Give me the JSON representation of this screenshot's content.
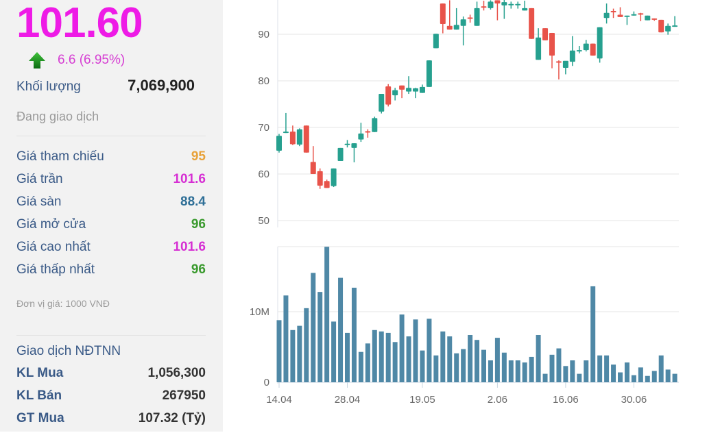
{
  "quote": {
    "price": "101.60",
    "change": "6.6 (6.95%)",
    "volume_label": "Khối lượng",
    "volume": "7,069,900",
    "status": "Đang giao dịch"
  },
  "prices": [
    {
      "label": "Giá tham chiếu",
      "value": "95",
      "color": "#e8a23a"
    },
    {
      "label": "Giá trần",
      "value": "101.6",
      "color": "#d62fd3"
    },
    {
      "label": "Giá sàn",
      "value": "88.4",
      "color": "#2f6f97"
    },
    {
      "label": "Giá mở cửa",
      "value": "96",
      "color": "#3a9a2e"
    },
    {
      "label": "Giá cao nhất",
      "value": "101.6",
      "color": "#d62fd3"
    },
    {
      "label": "Giá thấp nhất",
      "value": "96",
      "color": "#3a9a2e"
    }
  ],
  "unit_note": "Đơn vị giá: 1000 VNĐ",
  "foreign": {
    "title": "Giao dịch NĐTNN",
    "rows": [
      {
        "label": "KL Mua",
        "value": "1,056,300"
      },
      {
        "label": "KL Bán",
        "value": "267950"
      },
      {
        "label": "GT Mua",
        "value": "107.32 (Tỷ)"
      }
    ]
  },
  "chart_data": {
    "type": "candlestick",
    "price_ticks": [
      "50",
      "60",
      "70",
      "80",
      "90"
    ],
    "price_range": [
      48.5,
      97.5
    ],
    "volume_ticks": [
      "0",
      "10M"
    ],
    "volume_range_millions": [
      0,
      19.3
    ],
    "x_labels": [
      {
        "label": "14.04",
        "index": 0
      },
      {
        "label": "28.04",
        "index": 10
      },
      {
        "label": "19.05",
        "index": 21
      },
      {
        "label": "2.06",
        "index": 32
      },
      {
        "label": "16.06",
        "index": 42
      },
      {
        "label": "30.06",
        "index": 52
      }
    ],
    "colors": {
      "up": "#26a08f",
      "down": "#e8534a",
      "volume": "#4f88a6"
    },
    "ohlc": [
      [
        65,
        68.6,
        64.6,
        68.2
      ],
      [
        69,
        73.1,
        68.8,
        69.1
      ],
      [
        69.1,
        70.4,
        66.2,
        66.4
      ],
      [
        66.3,
        69.8,
        66,
        69.6
      ],
      [
        70.4,
        70.4,
        64.6,
        64.6
      ],
      [
        62.6,
        66,
        60,
        60
      ],
      [
        60.6,
        61.2,
        56.8,
        57.5
      ],
      [
        58.5,
        58.8,
        57,
        57
      ],
      [
        57.4,
        61.2,
        57.2,
        61.2
      ],
      [
        62.8,
        65.6,
        62.8,
        65.6
      ],
      [
        66.5,
        67.3,
        65.7,
        66.5
      ],
      [
        65.6,
        66.6,
        62.5,
        66.6
      ],
      [
        67.4,
        71,
        66.9,
        68.7
      ],
      [
        69.2,
        69.6,
        67.8,
        68.9
      ],
      [
        69,
        72.3,
        69,
        72
      ],
      [
        73.4,
        77.2,
        73,
        77.2
      ],
      [
        78.8,
        79.3,
        74.5,
        74.9
      ],
      [
        76.9,
        78.5,
        75.8,
        78
      ],
      [
        79,
        79,
        76.3,
        78.1
      ],
      [
        77.7,
        81,
        77.2,
        78.5
      ],
      [
        77.7,
        78.5,
        76.3,
        78.4
      ],
      [
        77.4,
        79.2,
        77.4,
        78.7
      ],
      [
        78.7,
        84.4,
        78.7,
        84.4
      ],
      [
        87,
        90.1,
        87,
        90.1
      ],
      [
        96.6,
        96.6,
        90.2,
        92.2
      ],
      [
        91.8,
        97.3,
        91,
        91
      ],
      [
        91,
        95.6,
        91,
        92
      ],
      [
        91.8,
        93.8,
        87.6,
        93.2
      ],
      [
        93.6,
        94.2,
        92.5,
        93.5
      ],
      [
        91.8,
        97,
        91.8,
        95.6
      ],
      [
        96,
        97.2,
        95.1,
        95.9
      ],
      [
        95.6,
        97.3,
        95.3,
        97
      ],
      [
        97.3,
        97.3,
        93,
        96.6
      ],
      [
        96.2,
        97.5,
        93.3,
        96.9
      ],
      [
        96.5,
        97,
        95.5,
        96.5
      ],
      [
        96.5,
        97,
        95.5,
        96.5
      ],
      [
        95.1,
        97.2,
        95.1,
        95.6
      ],
      [
        95.6,
        95.6,
        89,
        89
      ],
      [
        84.5,
        91.3,
        84.5,
        89.3
      ],
      [
        91.3,
        91.3,
        88.7,
        88.7
      ],
      [
        90.3,
        90.3,
        82.7,
        85.4
      ],
      [
        84.2,
        84.4,
        80.3,
        84.1
      ],
      [
        82.8,
        84.2,
        81.4,
        84.3
      ],
      [
        84.1,
        89.6,
        83.2,
        86.5
      ],
      [
        86.6,
        87.5,
        85.9,
        86.6
      ],
      [
        86.6,
        88.8,
        86.3,
        88
      ],
      [
        88,
        88,
        85.4,
        85.4
      ],
      [
        84.8,
        91.5,
        83.9,
        91.5
      ],
      [
        93.5,
        96.6,
        92.3,
        94.6
      ],
      [
        95,
        95.5,
        93.5,
        94.9
      ],
      [
        94.2,
        95.8,
        93.7,
        93.7
      ],
      [
        94,
        94,
        92,
        94
      ],
      [
        94.3,
        94.9,
        94,
        94.3
      ],
      [
        94.5,
        94.6,
        92.8,
        94.3
      ],
      [
        93,
        94,
        93,
        94
      ],
      [
        93.4,
        93.4,
        92.9,
        93.2
      ],
      [
        93.1,
        93.1,
        90.4,
        90.4
      ],
      [
        90.6,
        92.3,
        89.9,
        91.8
      ],
      [
        91.9,
        93.9,
        91.6,
        91.9
      ]
    ],
    "volume_millions": [
      8.8,
      12.3,
      7.4,
      8.0,
      10.5,
      15.5,
      12.8,
      19.2,
      8.6,
      14.8,
      7.0,
      13.4,
      4.3,
      5.5,
      7.4,
      7.2,
      7.0,
      5.7,
      9.6,
      6.5,
      8.9,
      4.5,
      9.0,
      3.8,
      7.2,
      6.5,
      4.1,
      4.7,
      6.7,
      6.0,
      4.6,
      3.1,
      6.3,
      4.2,
      3.1,
      3.1,
      2.8,
      3.6,
      6.7,
      1.2,
      3.9,
      4.8,
      2.3,
      3.1,
      1.2,
      3.1,
      13.6,
      3.8,
      3.8,
      2.5,
      1.4,
      2.8,
      1.0,
      2.1,
      0.9,
      1.6,
      3.8,
      1.8,
      1.2
    ]
  }
}
